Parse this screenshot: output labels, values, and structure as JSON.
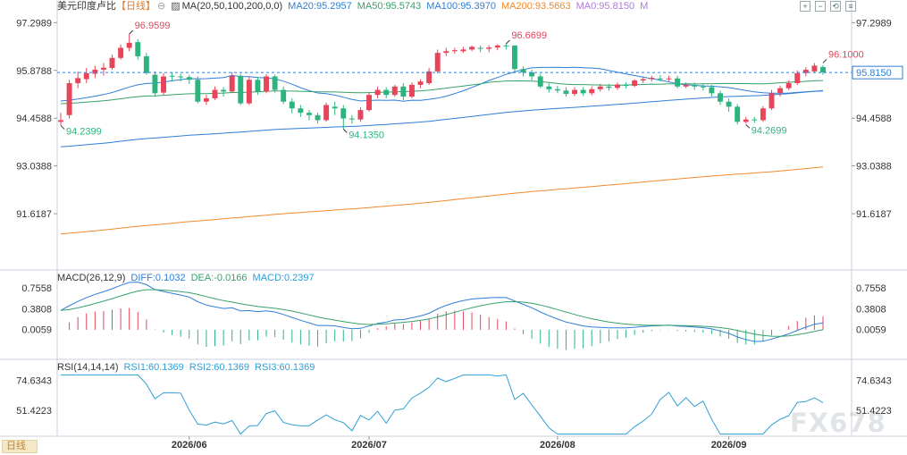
{
  "header": {
    "symbol": "美元印度卢比",
    "period": "【日线】",
    "ma_title": "MA(20,50,100,200,0,0)",
    "ma_values": [
      {
        "label": "MA20:95.2957",
        "color": "#2f7fd6"
      },
      {
        "label": "MA50:95.5743",
        "color": "#36a26a"
      },
      {
        "label": "MA100:95.3970",
        "color": "#2f7fd6"
      },
      {
        "label": "MA200:93.5663",
        "color": "#ef8a2b"
      },
      {
        "label": "MA0:95.8150",
        "color": "#b07ad8"
      }
    ],
    "m_label": "M"
  },
  "macd_header": {
    "title": "MACD(26,12,9)",
    "diff": "DIFF:0.1032",
    "dea": "DEA:-0.0166",
    "macd": "MACD:0.2397"
  },
  "rsi_header": {
    "title": "RSI(14,14,14)",
    "rsi1": "RSI1:60.1369",
    "rsi2": "RSI2:60.1369",
    "rsi3": "RSI3:60.1369"
  },
  "footer": {
    "period_button": "日线",
    "watermark": "FX678"
  },
  "colors": {
    "up": "#e8445a",
    "down": "#2db47e",
    "ma20": "#2f7fd6",
    "ma50": "#36a26a",
    "ma100": "#2f7fd6",
    "ma200": "#ef8a2b",
    "current_line": "#2f7fd6",
    "dea": "#36a26a",
    "diff": "#2f7fd6",
    "rsi": "#2f9fd6"
  },
  "icons": [
    "zoom-in-icon",
    "zoom-out-icon",
    "reset-icon",
    "settings-icon"
  ],
  "chart_data": {
    "type": "candlestick",
    "price_axis": {
      "ticks": [
        "97.2989",
        "95.8788",
        "94.4588",
        "93.0388",
        "91.6187"
      ],
      "ylim": [
        90.0,
        97.6
      ]
    },
    "current_price": "95.8150",
    "x_labels": [
      "2026/06",
      "2026/07",
      "2026/08",
      "2026/09"
    ],
    "x_label_index": [
      15,
      36,
      58,
      78
    ],
    "annotations": [
      {
        "label": "96.9599",
        "index": 8,
        "value": 96.96,
        "color": "#e8445a",
        "kind": "high"
      },
      {
        "label": "94.2399",
        "index": 0,
        "value": 94.24,
        "color": "#2db47e",
        "kind": "low"
      },
      {
        "label": "96.6699",
        "index": 52,
        "value": 96.67,
        "color": "#e8445a",
        "kind": "high"
      },
      {
        "label": "94.1350",
        "index": 33,
        "value": 94.135,
        "color": "#2db47e",
        "kind": "low"
      },
      {
        "label": "96.1000",
        "index": 89,
        "value": 96.1,
        "color": "#e8445a",
        "kind": "high"
      },
      {
        "label": "94.2699",
        "index": 80,
        "value": 94.27,
        "color": "#2db47e",
        "kind": "low"
      }
    ],
    "candles": [
      [
        94.35,
        94.4,
        94.25,
        94.62
      ],
      [
        94.55,
        95.5,
        94.45,
        95.6
      ],
      [
        95.5,
        95.65,
        95.35,
        95.85
      ],
      [
        95.62,
        95.8,
        95.5,
        95.95
      ],
      [
        95.78,
        95.9,
        95.65,
        96.02
      ],
      [
        95.9,
        95.96,
        95.72,
        96.1
      ],
      [
        95.95,
        96.25,
        95.9,
        96.35
      ],
      [
        96.25,
        96.55,
        96.2,
        96.65
      ],
      [
        96.55,
        96.7,
        96.45,
        96.96
      ],
      [
        96.72,
        96.3,
        96.2,
        96.8
      ],
      [
        96.3,
        95.8,
        95.75,
        96.4
      ],
      [
        95.75,
        95.2,
        95.1,
        95.85
      ],
      [
        95.22,
        95.7,
        95.15,
        95.8
      ],
      [
        95.72,
        95.7,
        95.55,
        95.82
      ],
      [
        95.7,
        95.68,
        95.55,
        95.78
      ],
      [
        95.68,
        95.6,
        95.48,
        95.75
      ],
      [
        95.6,
        94.95,
        94.9,
        95.7
      ],
      [
        94.95,
        95.05,
        94.85,
        95.15
      ],
      [
        95.05,
        95.3,
        95.0,
        95.4
      ],
      [
        95.3,
        95.25,
        95.1,
        95.38
      ],
      [
        95.25,
        95.72,
        95.2,
        95.82
      ],
      [
        95.72,
        94.9,
        94.85,
        95.78
      ],
      [
        94.9,
        95.6,
        94.85,
        95.7
      ],
      [
        95.6,
        95.25,
        95.15,
        95.68
      ],
      [
        95.25,
        95.7,
        95.2,
        95.76
      ],
      [
        95.7,
        95.3,
        95.22,
        95.75
      ],
      [
        95.3,
        94.95,
        94.88,
        95.4
      ],
      [
        94.95,
        94.75,
        94.6,
        95.05
      ],
      [
        94.75,
        94.62,
        94.5,
        94.85
      ],
      [
        94.62,
        94.55,
        94.4,
        94.7
      ],
      [
        94.55,
        94.4,
        94.3,
        94.62
      ],
      [
        94.4,
        94.85,
        94.35,
        94.92
      ],
      [
        94.8,
        94.75,
        94.55,
        94.95
      ],
      [
        94.75,
        94.45,
        94.13,
        94.85
      ],
      [
        94.45,
        94.42,
        94.3,
        94.55
      ],
      [
        94.42,
        94.7,
        94.35,
        94.78
      ],
      [
        94.7,
        95.15,
        94.65,
        95.22
      ],
      [
        95.15,
        95.3,
        95.05,
        95.4
      ],
      [
        95.3,
        95.15,
        95.05,
        95.38
      ],
      [
        95.15,
        95.4,
        95.1,
        95.45
      ],
      [
        95.4,
        95.1,
        95.0,
        95.5
      ],
      [
        95.1,
        95.45,
        95.05,
        95.52
      ],
      [
        95.45,
        95.55,
        95.35,
        95.62
      ],
      [
        95.5,
        95.85,
        95.45,
        95.95
      ],
      [
        95.85,
        96.4,
        95.8,
        96.5
      ],
      [
        96.4,
        96.45,
        96.3,
        96.55
      ],
      [
        96.45,
        96.48,
        96.38,
        96.55
      ],
      [
        96.45,
        96.5,
        96.4,
        96.58
      ],
      [
        96.5,
        96.58,
        96.45,
        96.62
      ],
      [
        96.55,
        96.52,
        96.42,
        96.62
      ],
      [
        96.52,
        96.56,
        96.42,
        96.63
      ],
      [
        96.56,
        96.62,
        96.48,
        96.66
      ],
      [
        96.62,
        96.6,
        96.5,
        96.67
      ],
      [
        96.62,
        95.92,
        95.85,
        96.62
      ],
      [
        95.92,
        95.82,
        95.7,
        96.0
      ],
      [
        95.82,
        95.7,
        95.58,
        95.9
      ],
      [
        95.7,
        95.4,
        95.35,
        95.78
      ],
      [
        95.4,
        95.32,
        95.22,
        95.5
      ],
      [
        95.32,
        95.28,
        95.2,
        95.42
      ],
      [
        95.28,
        95.18,
        95.1,
        95.38
      ],
      [
        95.18,
        95.3,
        95.12,
        95.38
      ],
      [
        95.3,
        95.2,
        95.12,
        95.38
      ],
      [
        95.2,
        95.32,
        95.14,
        95.4
      ],
      [
        95.32,
        95.4,
        95.25,
        95.48
      ],
      [
        95.4,
        95.36,
        95.28,
        95.48
      ],
      [
        95.36,
        95.46,
        95.3,
        95.52
      ],
      [
        95.46,
        95.42,
        95.34,
        95.52
      ],
      [
        95.42,
        95.58,
        95.38,
        95.62
      ],
      [
        95.58,
        95.62,
        95.5,
        95.7
      ],
      [
        95.62,
        95.66,
        95.55,
        95.72
      ],
      [
        95.64,
        95.62,
        95.55,
        95.74
      ],
      [
        95.62,
        95.64,
        95.56,
        95.72
      ],
      [
        95.64,
        95.4,
        95.35,
        95.72
      ],
      [
        95.4,
        95.45,
        95.35,
        95.52
      ],
      [
        95.45,
        95.4,
        95.3,
        95.52
      ],
      [
        95.4,
        95.38,
        95.28,
        95.48
      ],
      [
        95.38,
        95.2,
        95.1,
        95.45
      ],
      [
        95.2,
        94.95,
        94.85,
        95.28
      ],
      [
        94.95,
        94.8,
        94.65,
        95.05
      ],
      [
        94.8,
        94.35,
        94.27,
        94.88
      ],
      [
        94.35,
        94.42,
        94.3,
        94.5
      ],
      [
        94.42,
        94.4,
        94.32,
        94.5
      ],
      [
        94.4,
        94.75,
        94.35,
        94.82
      ],
      [
        94.75,
        95.2,
        94.7,
        95.3
      ],
      [
        95.2,
        95.35,
        95.1,
        95.42
      ],
      [
        95.35,
        95.5,
        95.3,
        95.58
      ],
      [
        95.5,
        95.8,
        95.45,
        95.88
      ],
      [
        95.8,
        95.9,
        95.7,
        95.98
      ],
      [
        95.85,
        96.02,
        95.8,
        96.1
      ],
      [
        95.98,
        95.82,
        95.75,
        96.04
      ]
    ],
    "macd_axis": {
      "ticks": [
        "0.7558",
        "0.3808",
        "0.0059"
      ],
      "ylim": [
        -0.5,
        0.82
      ]
    },
    "rsi_axis": {
      "ticks": [
        "74.6343",
        "51.4223"
      ],
      "ylim": [
        32,
        80
      ]
    }
  }
}
